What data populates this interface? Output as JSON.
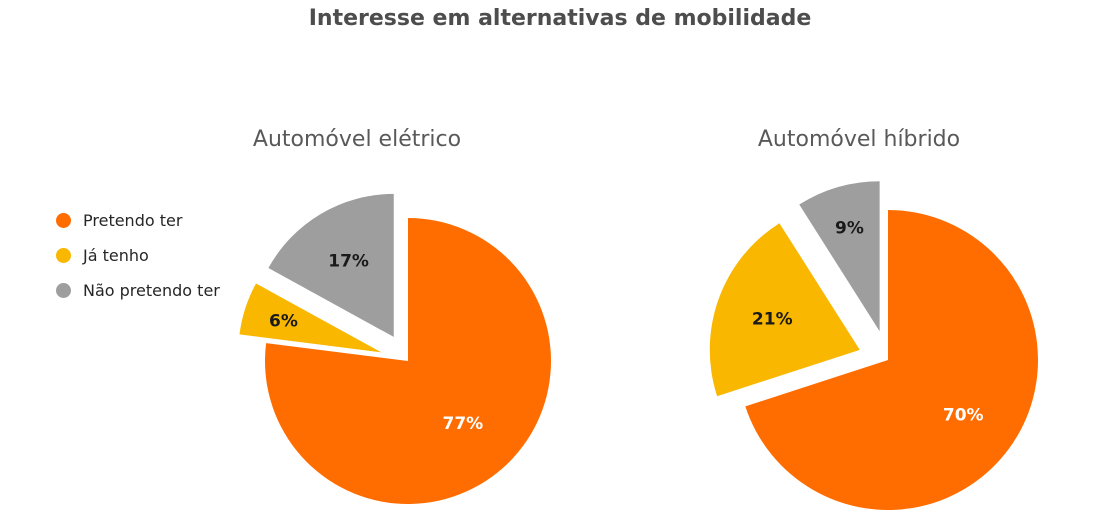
{
  "title": "Interesse em alternativas de mobilidade",
  "legend": [
    {
      "label": "Pretendo ter",
      "color": "#ff6d00"
    },
    {
      "label": "Já tenho",
      "color": "#f9b700"
    },
    {
      "label": "Não pretendo ter",
      "color": "#9e9e9e"
    }
  ],
  "chart_data": [
    {
      "type": "pie",
      "title": "Automóvel elétrico",
      "categories": [
        "Pretendo ter",
        "Já tenho",
        "Não pretendo ter"
      ],
      "values": [
        77,
        6,
        17
      ],
      "labels": [
        "77%",
        "6%",
        "17%"
      ],
      "colors": [
        "#ff6d00",
        "#f9b700",
        "#9e9e9e"
      ],
      "exploded": [
        false,
        true,
        true
      ],
      "legend_position": "left"
    },
    {
      "type": "pie",
      "title": "Automóvel híbrido",
      "categories": [
        "Pretendo ter",
        "Já tenho",
        "Não pretendo ter"
      ],
      "values": [
        70,
        21,
        9
      ],
      "labels": [
        "70%",
        "21%",
        "9%"
      ],
      "colors": [
        "#ff6d00",
        "#f9b700",
        "#9e9e9e"
      ],
      "exploded": [
        false,
        true,
        true
      ]
    }
  ]
}
